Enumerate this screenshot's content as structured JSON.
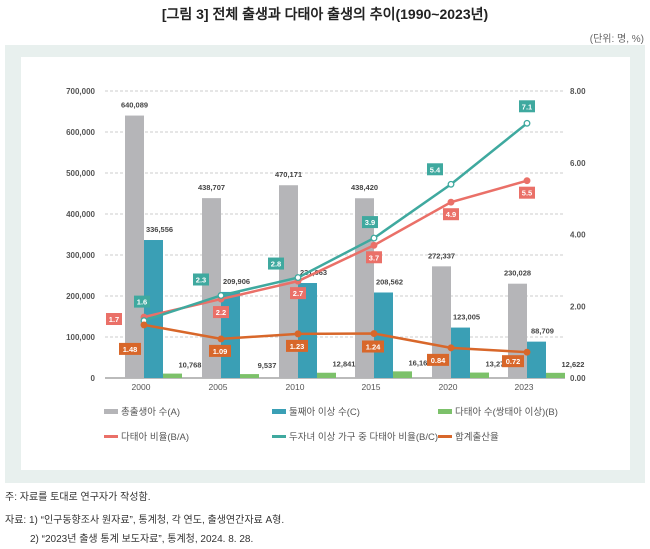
{
  "title": "[그림 3] 전체 출생과 다태아 출생의 추이(1990~2023년)",
  "unit": "(단위: 명, %)",
  "notes": [
    "주: 자료를 토대로 연구자가 작성함.",
    "자료: 1) “인구동향조사 원자료”, 통계청, 각 연도, 출생연간자료 A형.",
    "2) “2023년 출생 통계 보도자료”, 통계청, 2024. 8. 28."
  ],
  "chart_data": {
    "type": "bar+line",
    "categories": [
      "2000",
      "2005",
      "2010",
      "2015",
      "2020",
      "2023"
    ],
    "left_axis": {
      "ylim": [
        0,
        700000
      ],
      "ticks": [
        "0",
        "100,000",
        "200,000",
        "300,000",
        "400,000",
        "500,000",
        "600,000",
        "700,000"
      ]
    },
    "right_axis": {
      "ylim": [
        0,
        8
      ],
      "ticks": [
        "0.00",
        "2.00",
        "4.00",
        "6.00",
        "8.00"
      ]
    },
    "grid": true,
    "legend_placement": "bottom",
    "bars": [
      {
        "name": "총출생아 수(A)",
        "color": "#b5b5b8",
        "values": [
          640089,
          438707,
          470171,
          438420,
          272337,
          230028
        ],
        "labels": [
          "640,089",
          "438,707",
          "470,171",
          "438,420",
          "272,337",
          "230,028"
        ]
      },
      {
        "name": "둘째아 이상 수(C)",
        "color": "#3a9fb5",
        "values": [
          336556,
          209906,
          231663,
          208562,
          123005,
          88709
        ],
        "labels": [
          "336,556",
          "209,906",
          "231,663",
          "208,562",
          "123,005",
          "88,709"
        ]
      },
      {
        "name": "다태아 수(쌍태아 이상)(B)",
        "color": "#7cc16a",
        "values": [
          10768,
          9537,
          12841,
          16166,
          13277,
          12622
        ],
        "labels": [
          "10,768",
          "9,537",
          "12,841",
          "16,166",
          "13,277",
          "12,622"
        ]
      }
    ],
    "lines": [
      {
        "name": "다태아 비율(B/A)",
        "color": "#ea7068",
        "values": [
          1.7,
          2.2,
          2.7,
          3.7,
          4.9,
          5.5
        ],
        "labels": [
          "1.7",
          "2.2",
          "2.7",
          "3.7",
          "4.9",
          "5.5"
        ]
      },
      {
        "name": "두자녀 이상 가구 중 다태아 비율(B/C)",
        "color": "#3fa99f",
        "values": [
          1.6,
          2.3,
          2.8,
          3.9,
          5.4,
          7.1
        ],
        "labels": [
          "1.6",
          "2.3",
          "2.8",
          "3.9",
          "5.4",
          "7.1"
        ]
      },
      {
        "name": "합계출산율",
        "color": "#d8672a",
        "values": [
          1.48,
          1.09,
          1.23,
          1.24,
          0.84,
          0.72
        ],
        "labels": [
          "1.48",
          "1.09",
          "1.23",
          "1.24",
          "0.84",
          "0.72"
        ]
      }
    ]
  }
}
